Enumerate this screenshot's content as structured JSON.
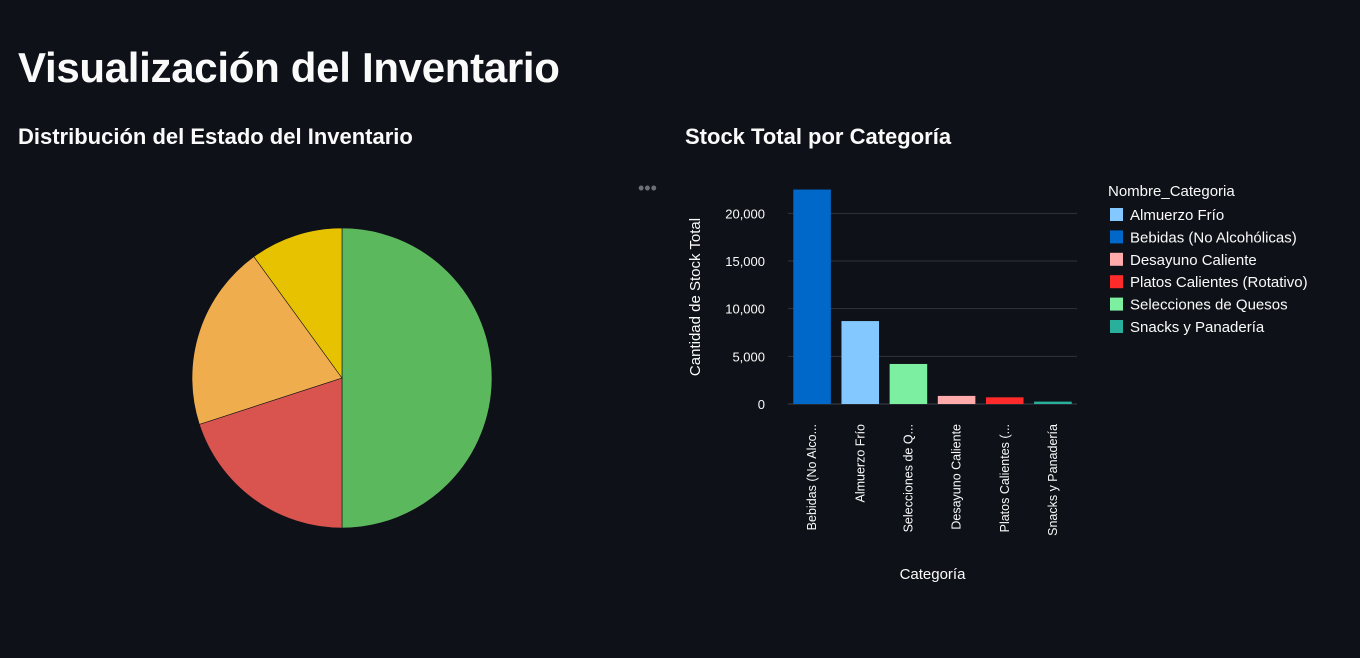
{
  "page": {
    "title": "Visualización del Inventario",
    "toolbar_icon": "more-horizontal-icon",
    "toolbar_glyph": "•••"
  },
  "left_chart": {
    "title": "Distribución del Estado del Inventario"
  },
  "right_chart": {
    "title": "Stock Total por Categoría"
  },
  "chart_data": [
    {
      "type": "pie",
      "title": "Distribución del Estado del Inventario",
      "direction": "clockwise",
      "start_angle": "12 o'clock",
      "slices": [
        {
          "value": 50,
          "color": "#5cb85c"
        },
        {
          "value": 20,
          "color": "#d9534f"
        },
        {
          "value": 20,
          "color": "#f0ad4e"
        },
        {
          "value": 10,
          "color": "#e6c200"
        }
      ]
    },
    {
      "type": "bar",
      "title": "Stock Total por Categoría",
      "xlabel": "Categoría",
      "ylabel": "Cantidad de Stock Total",
      "ylim": [
        0,
        23500
      ],
      "yticks": [
        0,
        5000,
        10000,
        15000,
        20000
      ],
      "ytick_labels": [
        "0",
        "5,000",
        "10,000",
        "15,000",
        "20,000"
      ],
      "categories": [
        "Bebidas (No Alcohólicas)",
        "Almuerzo Frío",
        "Selecciones de Quesos",
        "Desayuno Caliente",
        "Platos Calientes (Rotativo)",
        "Snacks y Panadería"
      ],
      "tick_labels": [
        "Bebidas (No Alco...",
        "Almuerzo Frío",
        "Selecciones de Q...",
        "Desayuno Caliente",
        "Platos Calientes (...",
        "Snacks y Panadería"
      ],
      "values": [
        22500,
        8700,
        4200,
        850,
        700,
        250
      ],
      "colors": [
        "#0068c9",
        "#83c9ff",
        "#7defa1",
        "#ffabab",
        "#ff2b2b",
        "#29b09d"
      ],
      "grid": true,
      "legend": {
        "title": "Nombre_Categoria",
        "placement": "right",
        "items": [
          {
            "label": "Almuerzo Frío",
            "color": "#83c9ff"
          },
          {
            "label": "Bebidas (No Alcohólicas)",
            "color": "#0068c9"
          },
          {
            "label": "Desayuno Caliente",
            "color": "#ffabab"
          },
          {
            "label": "Platos Calientes (Rotativo)",
            "color": "#ff2b2b"
          },
          {
            "label": "Selecciones de Quesos",
            "color": "#7defa1"
          },
          {
            "label": "Snacks y Panadería",
            "color": "#29b09d"
          }
        ]
      }
    }
  ]
}
